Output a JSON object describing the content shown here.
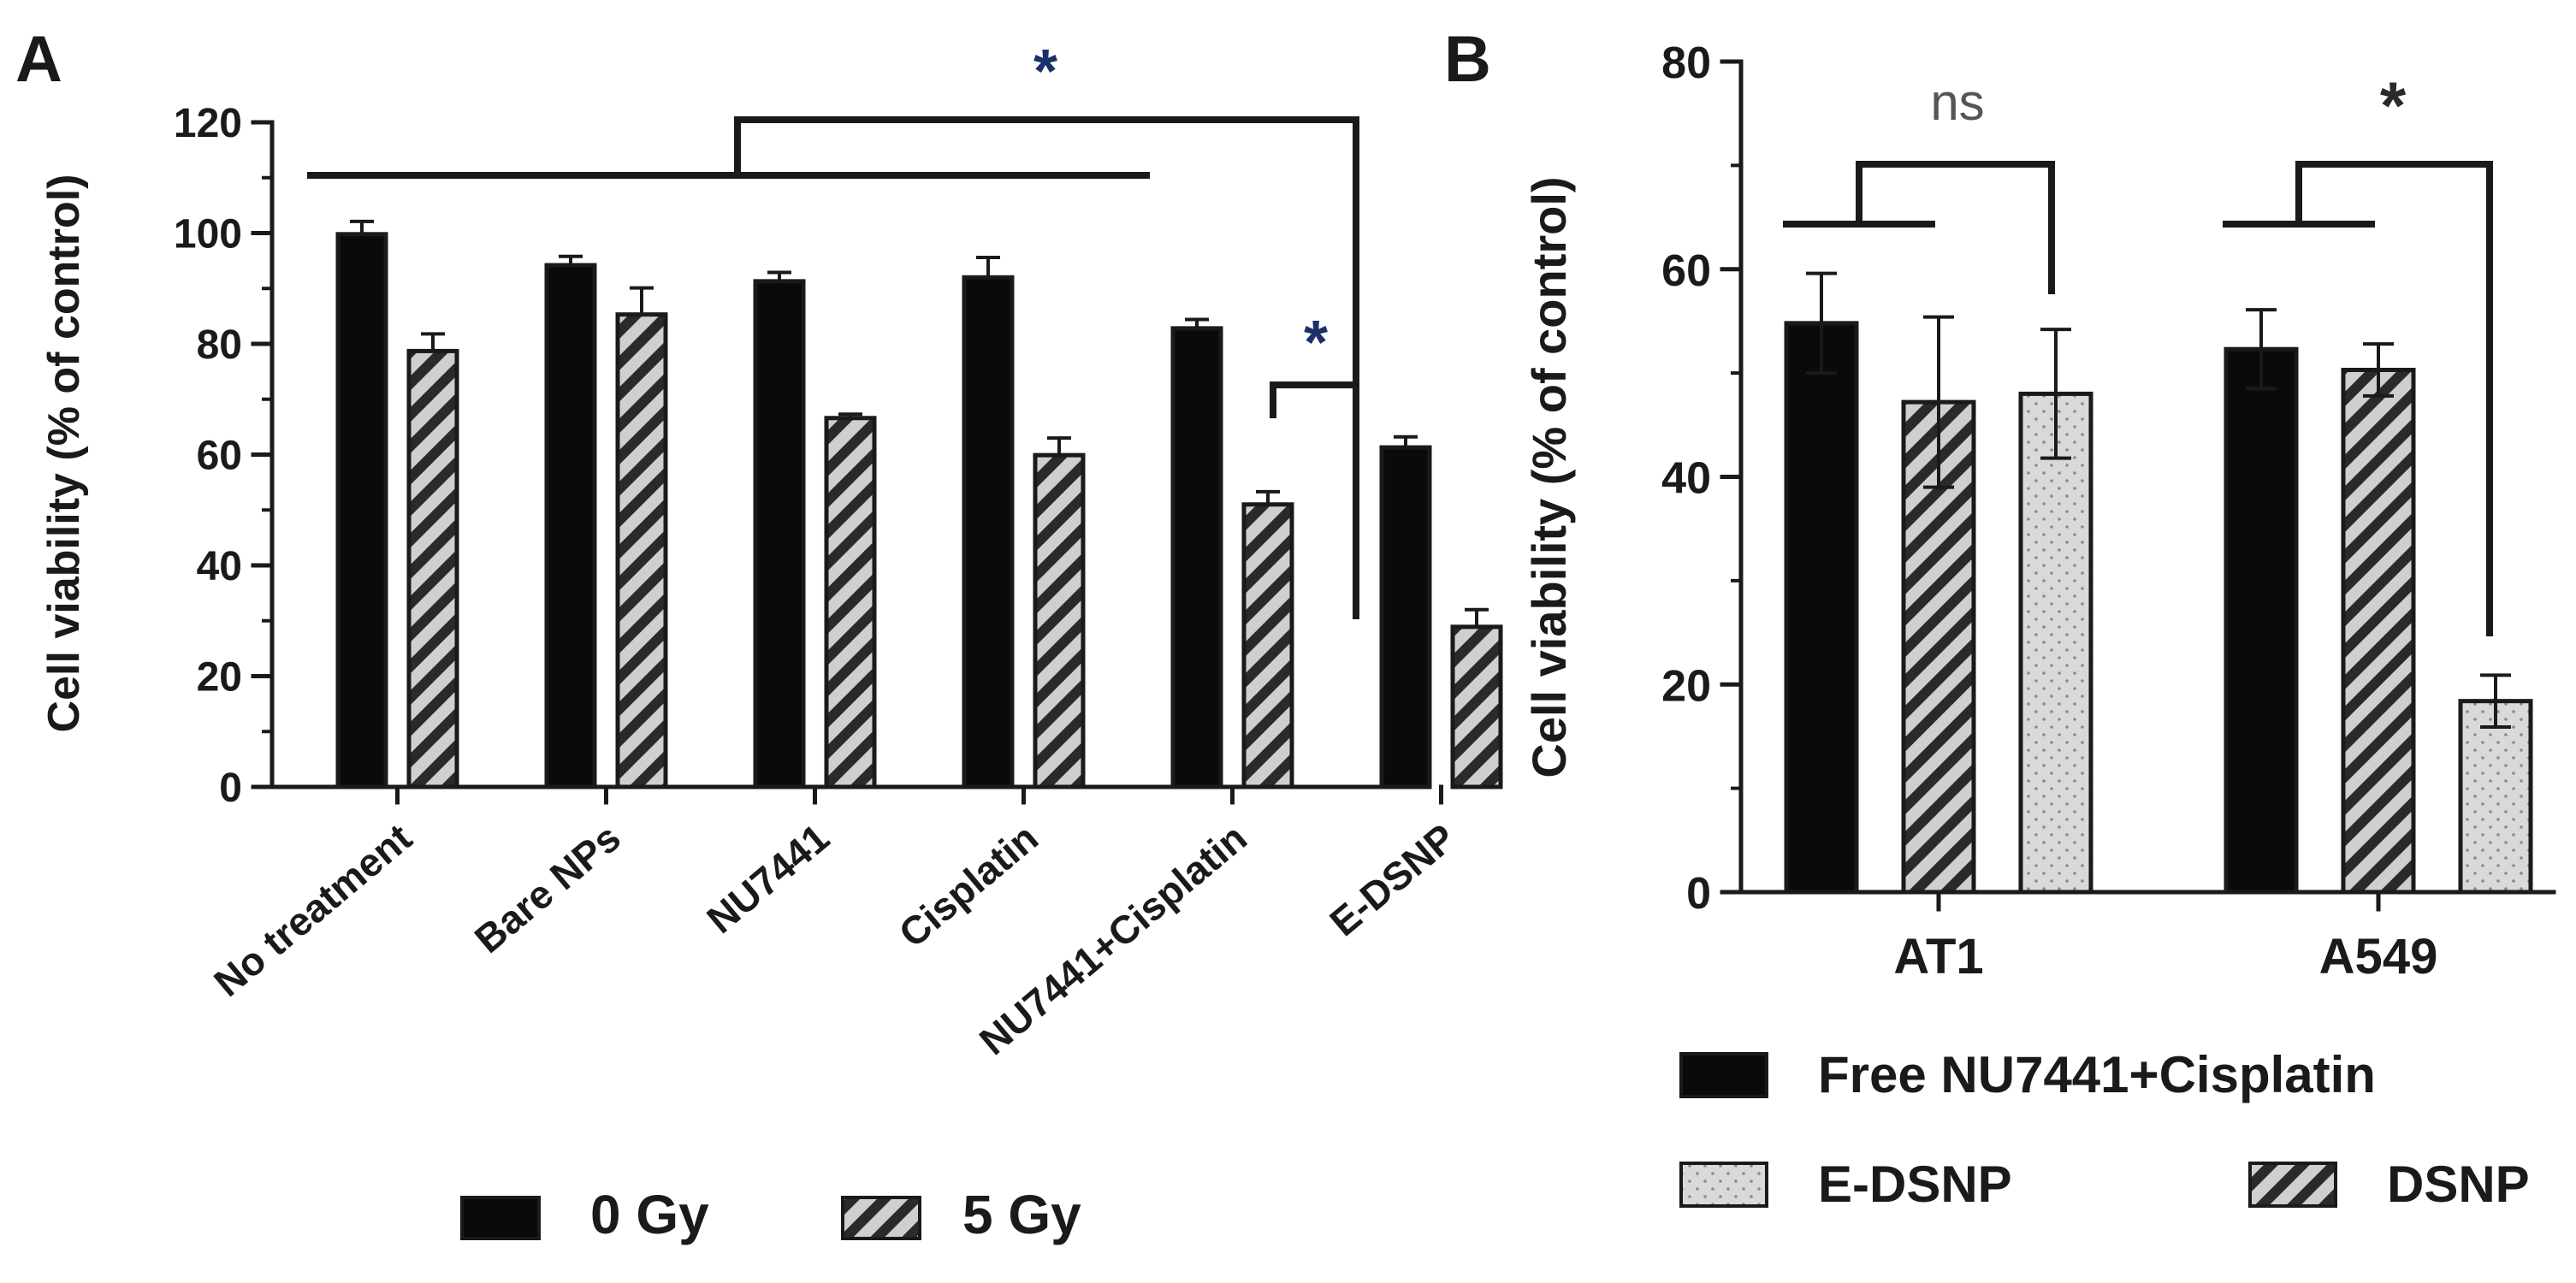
{
  "colors": {
    "solid": "#0a0a0a",
    "hatch_bg": "#cfcfcf",
    "hatch_line": "#2a2a2a",
    "dots_bg": "#d9d9d9",
    "dots": "#8a8a8a",
    "star": "#1b2f6b"
  },
  "chart_data": [
    {
      "panel": "A",
      "type": "bar",
      "title": "",
      "xlabel": "",
      "ylabel": "Cell viability (% of control)",
      "ylim": [
        0,
        120
      ],
      "yticks": [
        "0",
        "20",
        "40",
        "60",
        "80",
        "100",
        "120"
      ],
      "categories": [
        "No treatment",
        "Bare NPs",
        "NU7441",
        "Cisplatin",
        "NU7441+Cisplatin",
        "E-DSNP"
      ],
      "series": [
        {
          "name": "0 Gy",
          "pattern": "solid",
          "values": [
            99.8,
            94.2,
            91.3,
            92.0,
            82.8,
            61.3
          ],
          "errors": [
            2.3,
            1.6,
            1.6,
            3.6,
            1.6,
            1.9
          ]
        },
        {
          "name": "5 Gy",
          "pattern": "hatch",
          "values": [
            78.7,
            85.3,
            66.6,
            59.9,
            51.0,
            28.9
          ],
          "errors": [
            3.1,
            4.8,
            0.7,
            3.1,
            2.3,
            3.1
          ]
        }
      ],
      "legend": [
        "0 Gy",
        "5 Gy"
      ],
      "annotations": [
        "*",
        "*"
      ]
    },
    {
      "panel": "B",
      "type": "bar",
      "title": "",
      "xlabel": "",
      "ylabel": "Cell viability (% of control)",
      "ylim": [
        0,
        80
      ],
      "yticks": [
        "0",
        "20",
        "40",
        "60",
        "80"
      ],
      "categories": [
        "AT1",
        "A549"
      ],
      "series": [
        {
          "name": "Free NU7441+Cisplatin",
          "pattern": "solid",
          "values": [
            54.8,
            52.3
          ],
          "errors": [
            4.8,
            3.8
          ]
        },
        {
          "name": "DSNP",
          "pattern": "hatch",
          "values": [
            47.2,
            50.3
          ],
          "errors": [
            8.2,
            2.5
          ]
        },
        {
          "name": "E-DSNP",
          "pattern": "dots",
          "values": [
            48.0,
            18.4
          ],
          "errors": [
            6.2,
            2.5
          ]
        }
      ],
      "legend": [
        "Free NU7441+Cisplatin",
        "E-DSNP",
        "DSNP"
      ],
      "annotations": [
        "ns",
        "*"
      ]
    }
  ]
}
